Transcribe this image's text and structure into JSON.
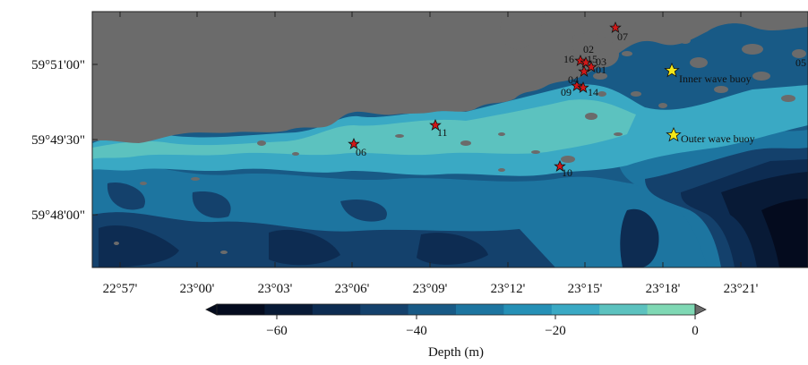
{
  "map": {
    "lat_ticks": [
      "59°51'00\"",
      "59°49'30\"",
      "59°48'00\""
    ],
    "lon_ticks": [
      "22°57'",
      "23°00'",
      "23°03'",
      "23°06'",
      "23°09'",
      "23°12'",
      "23°15'",
      "23°18'",
      "23°21'"
    ],
    "stations": [
      {
        "label": "07"
      },
      {
        "label": "02"
      },
      {
        "label": "16"
      },
      {
        "label": "15"
      },
      {
        "label": "03"
      },
      {
        "label": "01"
      },
      {
        "label": "04"
      },
      {
        "label": "09"
      },
      {
        "label": "14"
      },
      {
        "label": "11"
      },
      {
        "label": "06"
      },
      {
        "label": "10"
      },
      {
        "label": "05"
      }
    ],
    "buoys": [
      {
        "label": "Inner wave buoy"
      },
      {
        "label": "Outer wave buoy"
      }
    ]
  },
  "colorbar": {
    "label": "Depth (m)",
    "ticks": [
      "−60",
      "−40",
      "−20",
      "0"
    ],
    "colors": [
      "#040b1e",
      "#081a36",
      "#0d2c52",
      "#14416c",
      "#185a86",
      "#1d75a0",
      "#2590b6",
      "#3aa9c4",
      "#5cc2bf",
      "#7fd8b4"
    ],
    "land_color": "#6b6b6b"
  }
}
